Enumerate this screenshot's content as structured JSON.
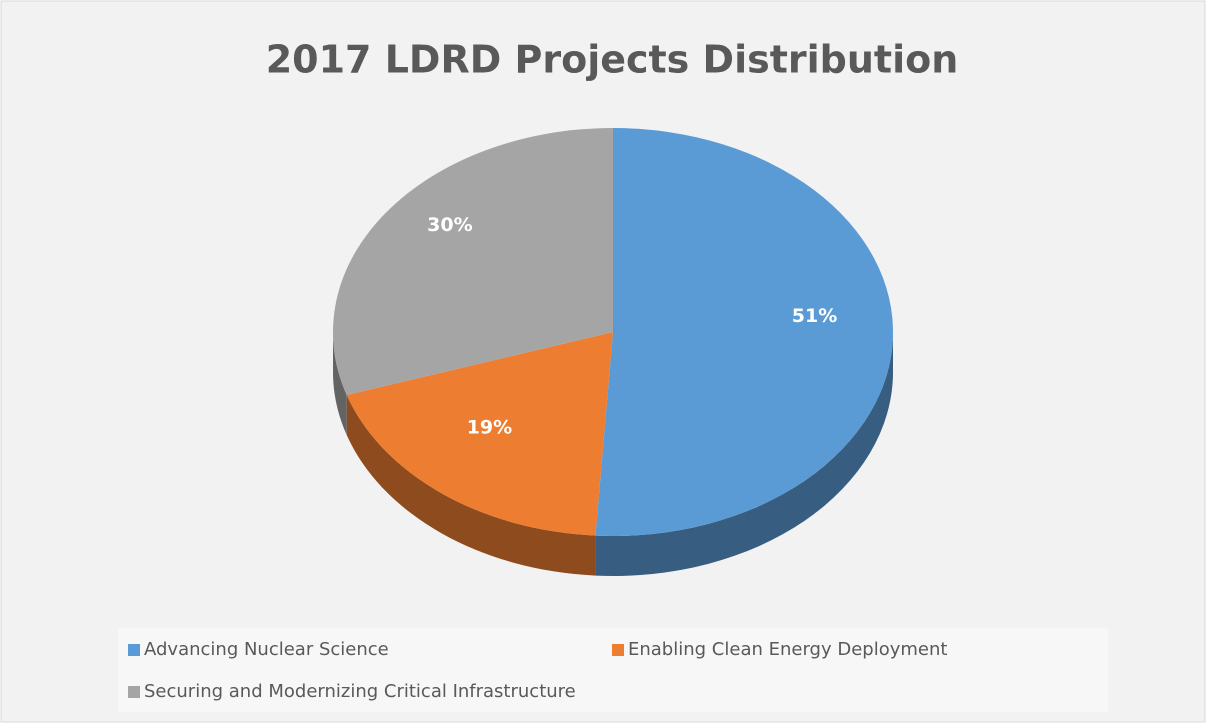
{
  "chart_data": {
    "type": "pie",
    "title": "2017 LDRD Projects Distribution",
    "categories": [
      "Advancing Nuclear Science",
      "Enabling Clean Energy Deployment",
      "Securing and Modernizing Critical Infrastructure"
    ],
    "values": [
      51,
      19,
      30
    ],
    "value_labels": [
      "51%",
      "19%",
      "30%"
    ],
    "colors": [
      "#5b9bd5",
      "#ed7d31",
      "#a5a5a5"
    ]
  }
}
